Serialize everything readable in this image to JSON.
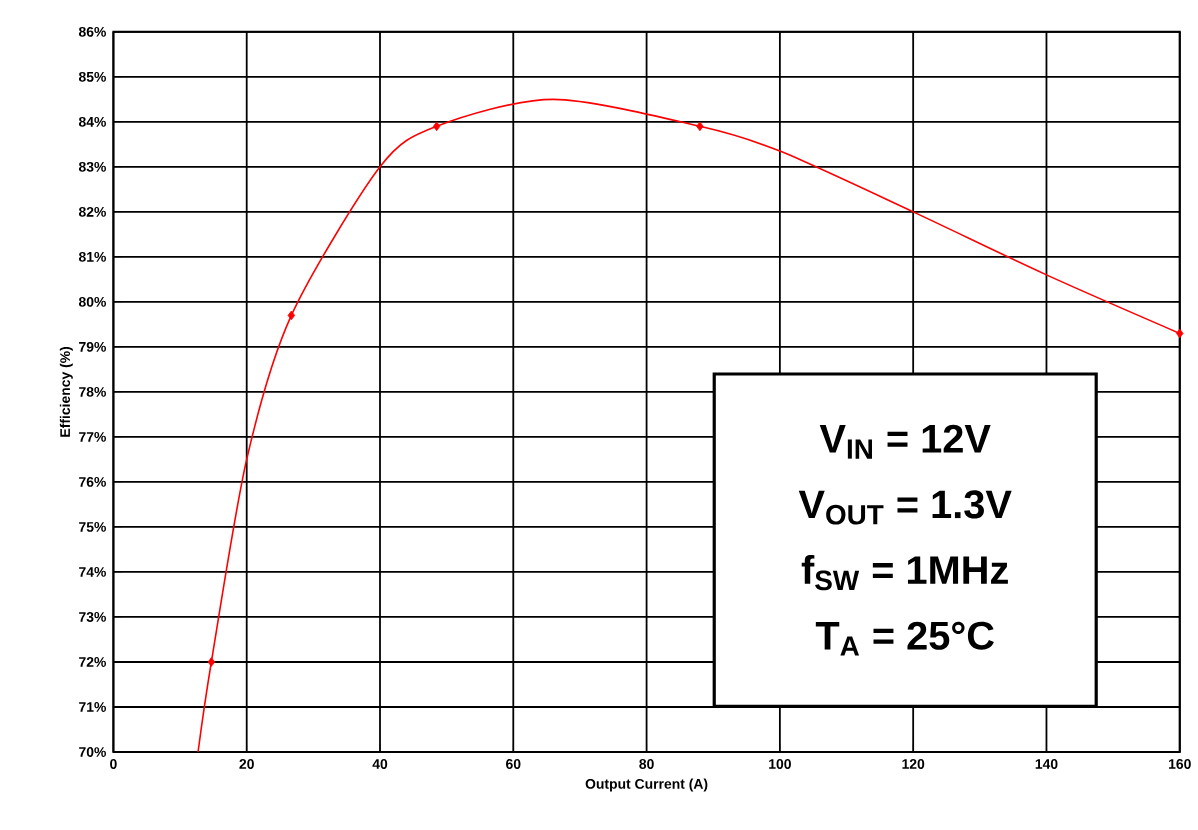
{
  "chart_data": {
    "type": "line",
    "xlabel": "Output Current (A)",
    "ylabel": "Efficiency (%)",
    "xlim": [
      0,
      160
    ],
    "xticks": [
      0,
      20,
      40,
      60,
      80,
      100,
      120,
      140,
      160
    ],
    "ylim": [
      70,
      86
    ],
    "yticks": [
      {
        "value": 70,
        "label": "70%"
      },
      {
        "value": 71,
        "label": "71%"
      },
      {
        "value": 72,
        "label": "72%"
      },
      {
        "value": 73,
        "label": "73%"
      },
      {
        "value": 74,
        "label": "74%"
      },
      {
        "value": 75,
        "label": "75%"
      },
      {
        "value": 76,
        "label": "76%"
      },
      {
        "value": 77,
        "label": "77%"
      },
      {
        "value": 78,
        "label": "78%"
      },
      {
        "value": 79,
        "label": "79%"
      },
      {
        "value": 80,
        "label": "80%"
      },
      {
        "value": 81,
        "label": "81%"
      },
      {
        "value": 82,
        "label": "82%"
      },
      {
        "value": 83,
        "label": "83%"
      },
      {
        "value": 84,
        "label": "84%"
      },
      {
        "value": 85,
        "label": "85%"
      },
      {
        "value": 86,
        "label": "86%"
      }
    ],
    "grid": true,
    "series": [
      {
        "color": "#ff0000",
        "marker": "none",
        "line_style": "solid",
        "x": [
          12.7,
          14.7,
          20,
          26.7,
          40,
          48.5,
          66,
          88,
          100,
          120,
          140,
          160
        ],
        "values": [
          70,
          72,
          76.5,
          79.7,
          83,
          83.9,
          84.5,
          83.9,
          83.35,
          82,
          80.6,
          79.3
        ]
      },
      {
        "type": "scatter",
        "color": "#ff0000",
        "marker": "diamond",
        "x": [
          14.7,
          26.7,
          48.5,
          88,
          160
        ],
        "values": [
          72,
          79.7,
          83.9,
          83.9,
          79.3
        ]
      }
    ],
    "annotations": [
      "V$_{IN}$ = 12V",
      "V$_{OUT}$ = 1.3V",
      "f$_{SW}$ = 1MHz",
      "T$_{A}$ = 25°C"
    ]
  }
}
